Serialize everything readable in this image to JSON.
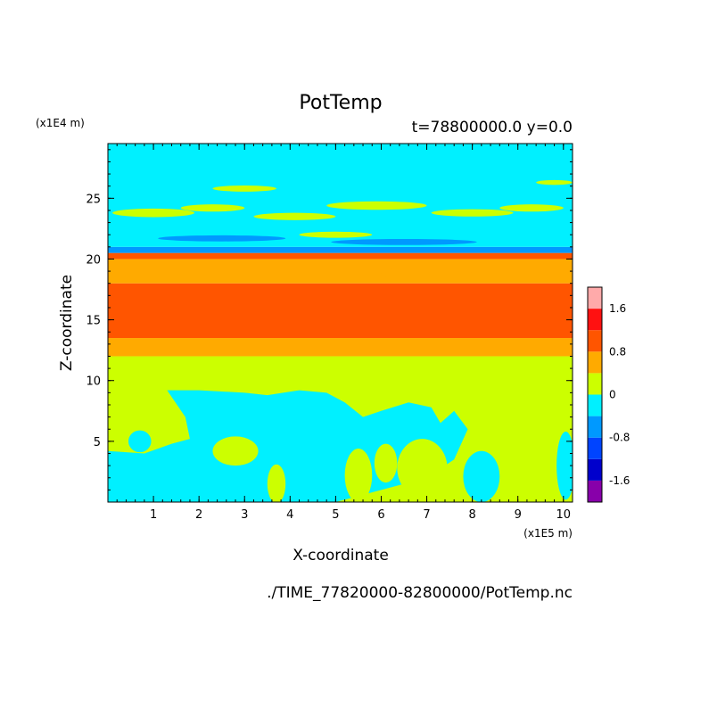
{
  "chart_data": {
    "type": "heatmap",
    "title": "PotTemp",
    "subtitle": "t=78800000.0 y=0.0",
    "xlabel": "X-coordinate",
    "ylabel": "Z-coordinate",
    "x_unit": "(x1E5 m)",
    "y_unit": "(x1E4 m)",
    "xlim": [
      0,
      10.2
    ],
    "ylim": [
      0,
      29.5
    ],
    "x_ticks": [
      1,
      2,
      3,
      4,
      5,
      6,
      7,
      8,
      9,
      10
    ],
    "y_ticks": [
      5,
      10,
      15,
      20,
      25
    ],
    "colorbar": {
      "tick_values": [
        1.6,
        0.8,
        0,
        -0.8,
        -1.6
      ],
      "tick_labels": [
        "1.6",
        "0.8",
        "0",
        "-0.8",
        "-1.6"
      ],
      "colors": [
        "#8800aa",
        "#0000cc",
        "#0044ff",
        "#0099ff",
        "#00f0ff",
        "#ccff00",
        "#ffaa00",
        "#ff5500",
        "#ff1111",
        "#ffaaaa"
      ],
      "range": [
        -2.0,
        2.0
      ]
    },
    "bands": [
      {
        "z0": 0,
        "z1": 12,
        "value": 0.2
      },
      {
        "z0": 12,
        "z1": 13.5,
        "value": 0.6
      },
      {
        "z0": 13.5,
        "z1": 18,
        "value": 1.0
      },
      {
        "z0": 18,
        "z1": 20,
        "value": 0.6
      },
      {
        "z0": 20,
        "z1": 20.5,
        "value": 1.0
      },
      {
        "z0": 20.5,
        "z1": 21,
        "value": -0.6
      },
      {
        "z0": 21,
        "z1": 29.5,
        "value": -0.2
      }
    ],
    "patches": [
      {
        "kind": "poly",
        "value": -0.2,
        "points": [
          [
            0,
            0
          ],
          [
            0,
            4.2
          ],
          [
            0.8,
            4
          ],
          [
            1.4,
            4.8
          ],
          [
            1.8,
            5.2
          ],
          [
            1.7,
            7
          ],
          [
            1.3,
            9.2
          ],
          [
            2,
            9.2
          ],
          [
            3,
            9
          ],
          [
            3.5,
            8.8
          ],
          [
            4.2,
            9.2
          ],
          [
            4.8,
            9
          ],
          [
            5.2,
            8.2
          ],
          [
            5.6,
            7
          ],
          [
            6,
            7.5
          ],
          [
            6.6,
            8.2
          ],
          [
            7.1,
            7.8
          ],
          [
            7.3,
            6.5
          ],
          [
            7.6,
            7.5
          ],
          [
            7.9,
            6
          ],
          [
            7.6,
            3.5
          ],
          [
            7,
            2
          ],
          [
            6,
            1
          ],
          [
            5,
            0
          ]
        ]
      },
      {
        "kind": "ellipse",
        "value": 0.2,
        "cx": 2.8,
        "cy": 4.2,
        "rx": 0.5,
        "ry": 1.2
      },
      {
        "kind": "ellipse",
        "value": 0.2,
        "cx": 3.7,
        "cy": 1.5,
        "rx": 0.2,
        "ry": 1.6
      },
      {
        "kind": "ellipse",
        "value": 0.2,
        "cx": 5.5,
        "cy": 2.2,
        "rx": 0.3,
        "ry": 2.2
      },
      {
        "kind": "ellipse",
        "value": 0.2,
        "cx": 6.1,
        "cy": 3.2,
        "rx": 0.25,
        "ry": 1.6
      },
      {
        "kind": "ellipse",
        "value": 0.2,
        "cx": 6.9,
        "cy": 2.8,
        "rx": 0.55,
        "ry": 2.4
      },
      {
        "kind": "ellipse",
        "value": -0.2,
        "cx": 0.7,
        "cy": 5,
        "rx": 0.25,
        "ry": 0.9
      },
      {
        "kind": "ellipse",
        "value": -0.2,
        "cx": 8.2,
        "cy": 2.1,
        "rx": 0.4,
        "ry": 2.1
      },
      {
        "kind": "ellipse",
        "value": -0.2,
        "cx": 10.05,
        "cy": 3,
        "rx": 0.2,
        "ry": 2.8
      },
      {
        "kind": "ellipse",
        "value": 0.2,
        "cx": 1.0,
        "cy": 23.8,
        "rx": 0.9,
        "ry": 0.35
      },
      {
        "kind": "ellipse",
        "value": 0.2,
        "cx": 2.3,
        "cy": 24.2,
        "rx": 0.7,
        "ry": 0.3
      },
      {
        "kind": "ellipse",
        "value": 0.2,
        "cx": 3.0,
        "cy": 25.8,
        "rx": 0.7,
        "ry": 0.25
      },
      {
        "kind": "ellipse",
        "value": 0.2,
        "cx": 4.1,
        "cy": 23.5,
        "rx": 0.9,
        "ry": 0.3
      },
      {
        "kind": "ellipse",
        "value": 0.2,
        "cx": 5.9,
        "cy": 24.4,
        "rx": 1.1,
        "ry": 0.35
      },
      {
        "kind": "ellipse",
        "value": 0.2,
        "cx": 8.0,
        "cy": 23.8,
        "rx": 0.9,
        "ry": 0.3
      },
      {
        "kind": "ellipse",
        "value": 0.2,
        "cx": 9.3,
        "cy": 24.2,
        "rx": 0.7,
        "ry": 0.3
      },
      {
        "kind": "ellipse",
        "value": 0.2,
        "cx": 5.0,
        "cy": 22.0,
        "rx": 0.8,
        "ry": 0.25
      },
      {
        "kind": "ellipse",
        "value": 0.2,
        "cx": 9.8,
        "cy": 26.3,
        "rx": 0.4,
        "ry": 0.2
      },
      {
        "kind": "ellipse",
        "value": -0.6,
        "cx": 2.5,
        "cy": 21.7,
        "rx": 1.4,
        "ry": 0.25
      },
      {
        "kind": "ellipse",
        "value": -0.6,
        "cx": 6.5,
        "cy": 21.4,
        "rx": 1.6,
        "ry": 0.25
      },
      {
        "kind": "ellipse",
        "value": 0.6,
        "cx": 2.2,
        "cy": 19.2,
        "rx": 0.9,
        "ry": 0.8
      },
      {
        "kind": "ellipse",
        "value": 0.6,
        "cx": 4.0,
        "cy": 18.9,
        "rx": 0.7,
        "ry": 0.7
      },
      {
        "kind": "ellipse",
        "value": 0.6,
        "cx": 7.0,
        "cy": 18.8,
        "rx": 1.0,
        "ry": 0.6
      }
    ]
  },
  "footer": {
    "source_path": "./TIME_77820000-82800000/PotTemp.nc"
  }
}
